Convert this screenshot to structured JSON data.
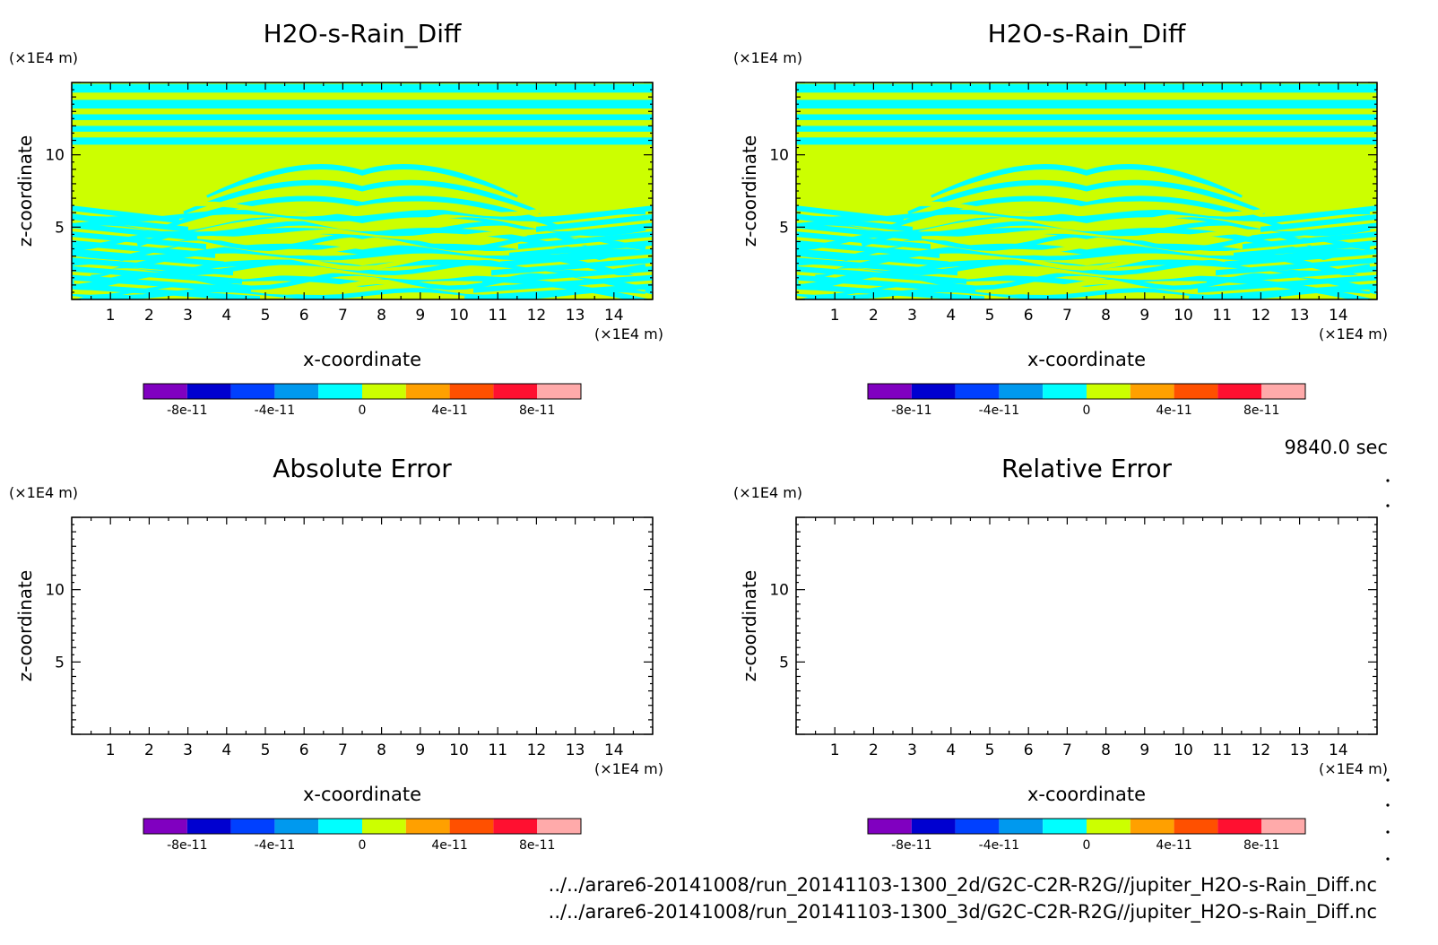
{
  "figure": {
    "time_label": "9840.0 sec",
    "files": [
      "../../arare6-20141008/run_20141103-1300_2d/G2C-C2R-R2G//jupiter_H2O-s-Rain_Diff.nc",
      "../../arare6-20141008/run_20141103-1300_3d/G2C-C2R-R2G//jupiter_H2O-s-Rain_Diff.nc"
    ]
  },
  "colors": {
    "background": "#ffffff",
    "field_low": "#00ffff",
    "field_high": "#ccff00",
    "frame": "#000000"
  },
  "chart_data": [
    {
      "type": "heatmap",
      "title": "H2O-s-Rain_Diff",
      "xlabel": "x-coordinate",
      "ylabel": "z-coordinate",
      "x_unit": "(×1E4 m)",
      "y_unit": "(×1E4 m)",
      "xlim": [
        0,
        15
      ],
      "ylim": [
        0,
        15
      ],
      "xticks": [
        1,
        2,
        3,
        4,
        5,
        6,
        7,
        8,
        9,
        10,
        11,
        12,
        13,
        14
      ],
      "yticks": [
        5,
        10
      ],
      "field": "diagonal-band-pattern",
      "colorbar": {
        "colors": [
          "#8000c0",
          "#0000d0",
          "#0040ff",
          "#0099ee",
          "#00ffff",
          "#ccff00",
          "#ffa000",
          "#ff5000",
          "#ff1030",
          "#ffaaaa"
        ],
        "tick_labels": [
          "-8e-11",
          "-4e-11",
          "0",
          "4e-11",
          "8e-11"
        ],
        "tick_values": [
          -8e-11,
          -4e-11,
          0,
          4e-11,
          8e-11
        ],
        "range": [
          -1e-10,
          1e-10
        ]
      }
    },
    {
      "type": "heatmap",
      "title": "H2O-s-Rain_Diff",
      "xlabel": "x-coordinate",
      "ylabel": "z-coordinate",
      "x_unit": "(×1E4 m)",
      "y_unit": "(×1E4 m)",
      "xlim": [
        0,
        15
      ],
      "ylim": [
        0,
        15
      ],
      "xticks": [
        1,
        2,
        3,
        4,
        5,
        6,
        7,
        8,
        9,
        10,
        11,
        12,
        13,
        14
      ],
      "yticks": [
        5,
        10
      ],
      "field": "diagonal-band-pattern",
      "colorbar": {
        "colors": [
          "#8000c0",
          "#0000d0",
          "#0040ff",
          "#0099ee",
          "#00ffff",
          "#ccff00",
          "#ffa000",
          "#ff5000",
          "#ff1030",
          "#ffaaaa"
        ],
        "tick_labels": [
          "-8e-11",
          "-4e-11",
          "0",
          "4e-11",
          "8e-11"
        ],
        "tick_values": [
          -8e-11,
          -4e-11,
          0,
          4e-11,
          8e-11
        ],
        "range": [
          -1e-10,
          1e-10
        ]
      }
    },
    {
      "type": "heatmap",
      "title": "Absolute Error",
      "xlabel": "x-coordinate",
      "ylabel": "z-coordinate",
      "x_unit": "(×1E4 m)",
      "y_unit": "(×1E4 m)",
      "xlim": [
        0,
        15
      ],
      "ylim": [
        0,
        15
      ],
      "xticks": [
        1,
        2,
        3,
        4,
        5,
        6,
        7,
        8,
        9,
        10,
        11,
        12,
        13,
        14
      ],
      "yticks": [
        5,
        10
      ],
      "field": "empty",
      "colorbar": {
        "colors": [
          "#8000c0",
          "#0000d0",
          "#0040ff",
          "#0099ee",
          "#00ffff",
          "#ccff00",
          "#ffa000",
          "#ff5000",
          "#ff1030",
          "#ffaaaa"
        ],
        "tick_labels": [
          "-8e-11",
          "-4e-11",
          "0",
          "4e-11",
          "8e-11"
        ],
        "tick_values": [
          -8e-11,
          -4e-11,
          0,
          4e-11,
          8e-11
        ],
        "range": [
          -1e-10,
          1e-10
        ]
      }
    },
    {
      "type": "heatmap",
      "title": "Relative Error",
      "xlabel": "x-coordinate",
      "ylabel": "z-coordinate",
      "x_unit": "(×1E4 m)",
      "y_unit": "(×1E4 m)",
      "xlim": [
        0,
        15
      ],
      "ylim": [
        0,
        15
      ],
      "xticks": [
        1,
        2,
        3,
        4,
        5,
        6,
        7,
        8,
        9,
        10,
        11,
        12,
        13,
        14
      ],
      "yticks": [
        5,
        10
      ],
      "field": "empty",
      "colorbar": {
        "colors": [
          "#8000c0",
          "#0000d0",
          "#0040ff",
          "#0099ee",
          "#00ffff",
          "#ccff00",
          "#ffa000",
          "#ff5000",
          "#ff1030",
          "#ffaaaa"
        ],
        "tick_labels": [
          "-8e-11",
          "-4e-11",
          "0",
          "4e-11",
          "8e-11"
        ],
        "tick_values": [
          -8e-11,
          -4e-11,
          0,
          4e-11,
          8e-11
        ],
        "range": [
          -1e-10,
          1e-10
        ]
      }
    }
  ]
}
